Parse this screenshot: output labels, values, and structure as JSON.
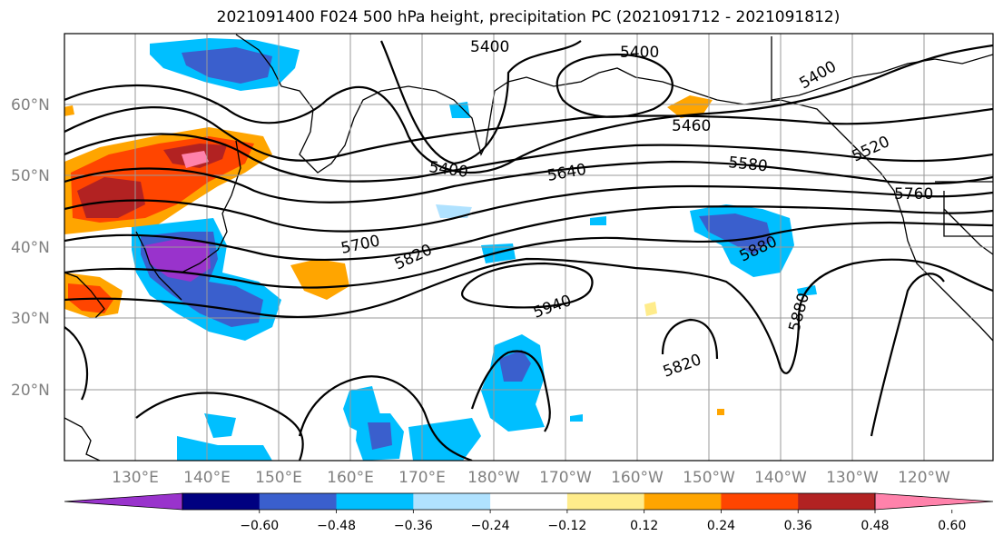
{
  "title": "2021091400 F024 500 hPa height, precipitation PC (2021091712 - 2021091812)",
  "lat_labels": [
    "60°N",
    "50°N",
    "40°N",
    "30°N",
    "20°N"
  ],
  "lon_labels": [
    "130°E",
    "140°E",
    "150°E",
    "160°E",
    "170°E",
    "180°W",
    "170°W",
    "160°W",
    "150°W",
    "140°W",
    "130°W",
    "120°W"
  ],
  "colorbar": {
    "colors": [
      "#9933cc",
      "#000080",
      "#3a5fcd",
      "#00bfff",
      "#b0e2ff",
      "#ffffff",
      "#ffec8b",
      "#ffa500",
      "#ff4500",
      "#b22222",
      "#ff82ab"
    ],
    "tick_labels": [
      "−0.60",
      "−0.48",
      "−0.36",
      "−0.24",
      "−0.12",
      "0.12",
      "0.24",
      "0.36",
      "0.48",
      "0.60"
    ]
  },
  "contour_labels": [
    "5400",
    "5400",
    "5400",
    "5460",
    "5400",
    "5580",
    "5640",
    "5520",
    "5760",
    "5700",
    "5820",
    "5880",
    "5940",
    "5880",
    "5820"
  ]
}
